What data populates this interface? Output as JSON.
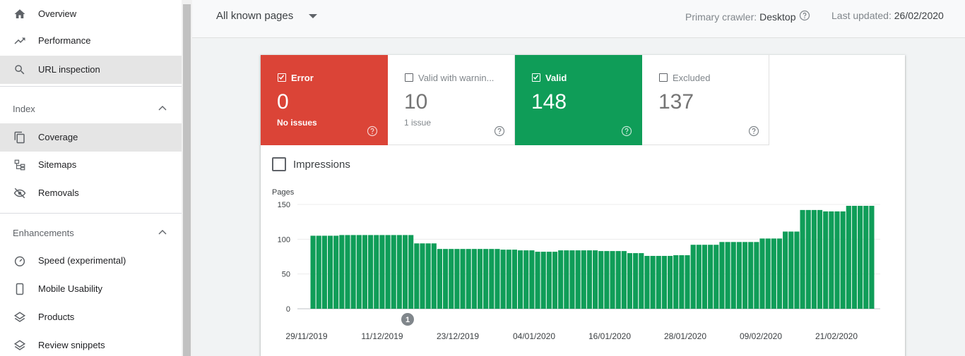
{
  "sidebar": {
    "top_items": [
      {
        "label": "Overview",
        "icon": "home-icon"
      },
      {
        "label": "Performance",
        "icon": "trending-up-icon"
      },
      {
        "label": "URL inspection",
        "icon": "search-icon"
      }
    ],
    "index_section": {
      "title": "Index",
      "items": [
        {
          "label": "Coverage",
          "icon": "copy-icon"
        },
        {
          "label": "Sitemaps",
          "icon": "sitemap-icon"
        },
        {
          "label": "Removals",
          "icon": "eye-off-icon"
        }
      ]
    },
    "enhancements_section": {
      "title": "Enhancements",
      "items": [
        {
          "label": "Speed (experimental)",
          "icon": "speedometer-icon"
        },
        {
          "label": "Mobile Usability",
          "icon": "phone-icon"
        },
        {
          "label": "Products",
          "icon": "layers-icon"
        },
        {
          "label": "Review snippets",
          "icon": "layers-icon"
        }
      ]
    }
  },
  "topbar": {
    "pages_select": "All known pages",
    "crawler_label": "Primary crawler:",
    "crawler_value": "Desktop",
    "updated_label": "Last updated:",
    "updated_value": "26/02/2020"
  },
  "tiles": [
    {
      "label": "Error",
      "value": "0",
      "sub": "No issues",
      "checked": true,
      "color": "#db4437"
    },
    {
      "label": "Valid with warnin...",
      "value": "10",
      "sub": "1 issue",
      "checked": false,
      "color": "#ffffff"
    },
    {
      "label": "Valid",
      "value": "148",
      "sub": "",
      "checked": true,
      "color": "#0f9d58"
    },
    {
      "label": "Excluded",
      "value": "137",
      "sub": "",
      "checked": false,
      "color": "#ffffff"
    }
  ],
  "impressions_label": "Impressions",
  "chart_data": {
    "type": "bar",
    "ylabel": "Pages",
    "ylim": [
      0,
      150
    ],
    "yticks": [
      0,
      50,
      100,
      150
    ],
    "xticks": [
      "29/11/2019",
      "11/12/2019",
      "23/12/2019",
      "04/01/2020",
      "16/01/2020",
      "28/01/2020",
      "09/02/2020",
      "21/02/2020"
    ],
    "bar_color": "#0f9d58",
    "annotation": "1",
    "values": [
      105,
      105,
      105,
      105,
      105,
      106,
      106,
      106,
      106,
      106,
      106,
      106,
      106,
      106,
      106,
      106,
      106,
      106,
      94,
      94,
      94,
      94,
      86,
      86,
      86,
      86,
      86,
      86,
      86,
      86,
      86,
      86,
      86,
      85,
      85,
      85,
      84,
      84,
      84,
      82,
      82,
      82,
      82,
      84,
      84,
      84,
      84,
      84,
      84,
      84,
      83,
      83,
      83,
      83,
      83,
      80,
      80,
      80,
      76,
      76,
      76,
      76,
      76,
      77,
      77,
      77,
      92,
      92,
      92,
      92,
      92,
      96,
      96,
      96,
      96,
      96,
      96,
      96,
      101,
      101,
      101,
      101,
      111,
      111,
      111,
      142,
      142,
      142,
      142,
      140,
      140,
      140,
      140,
      148,
      148,
      148,
      148,
      148
    ]
  }
}
